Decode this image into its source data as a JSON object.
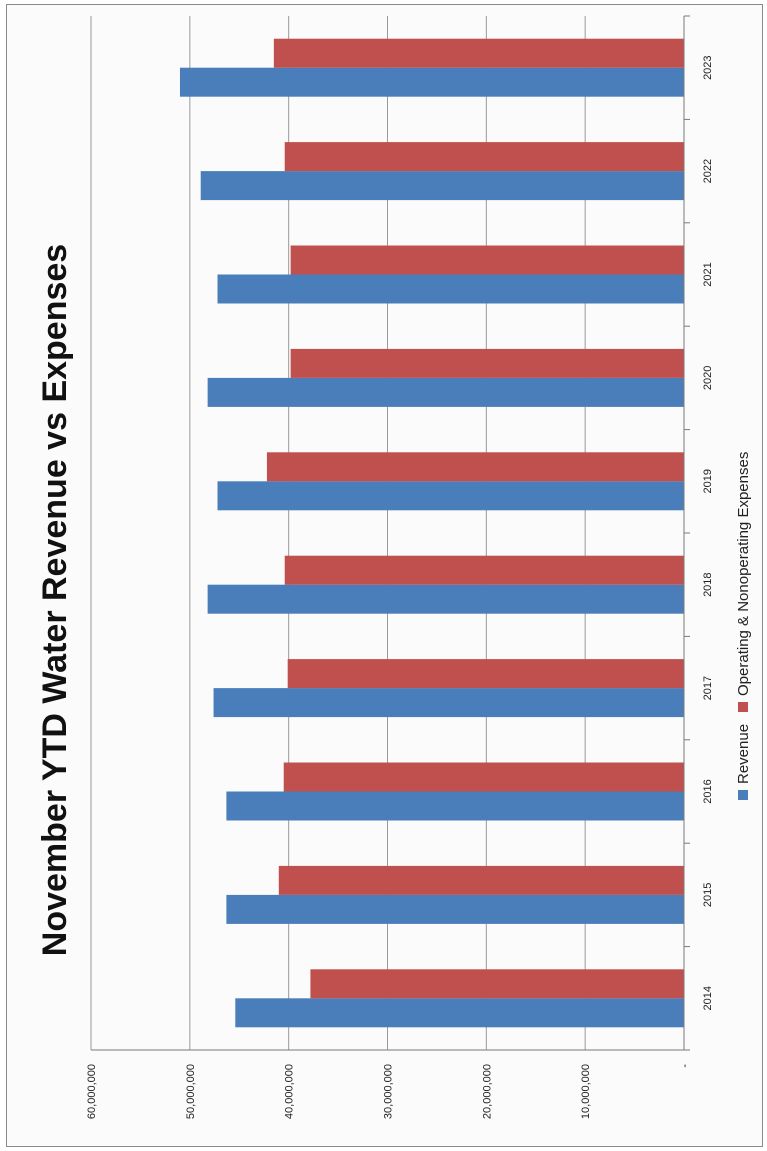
{
  "chart_data": {
    "type": "bar",
    "orientation": "horizontal-bars-rotated-page",
    "title": "November YTD Water Revenue vs Expenses",
    "xlabel": "",
    "ylabel": "",
    "categories": [
      "2014",
      "2015",
      "2016",
      "2017",
      "2018",
      "2019",
      "2020",
      "2021",
      "2022",
      "2023"
    ],
    "series": [
      {
        "name": "Revenue",
        "color": "#4a7ebb",
        "values": [
          45400000,
          46300000,
          46300000,
          47600000,
          48200000,
          47200000,
          48200000,
          47200000,
          48900000,
          51000000
        ]
      },
      {
        "name": "Operating & Nonoperating Expenses",
        "color": "#c0504d",
        "values": [
          37800000,
          41000000,
          40500000,
          40100000,
          40400000,
          42200000,
          39800000,
          39800000,
          40400000,
          41500000
        ]
      }
    ],
    "ylim": [
      0,
      60000000
    ],
    "yticks": [
      "-",
      "10,000,000",
      "20,000,000",
      "30,000,000",
      "40,000,000",
      "50,000,000",
      "60,000,000"
    ],
    "grid": true,
    "legend_position": "bottom"
  }
}
